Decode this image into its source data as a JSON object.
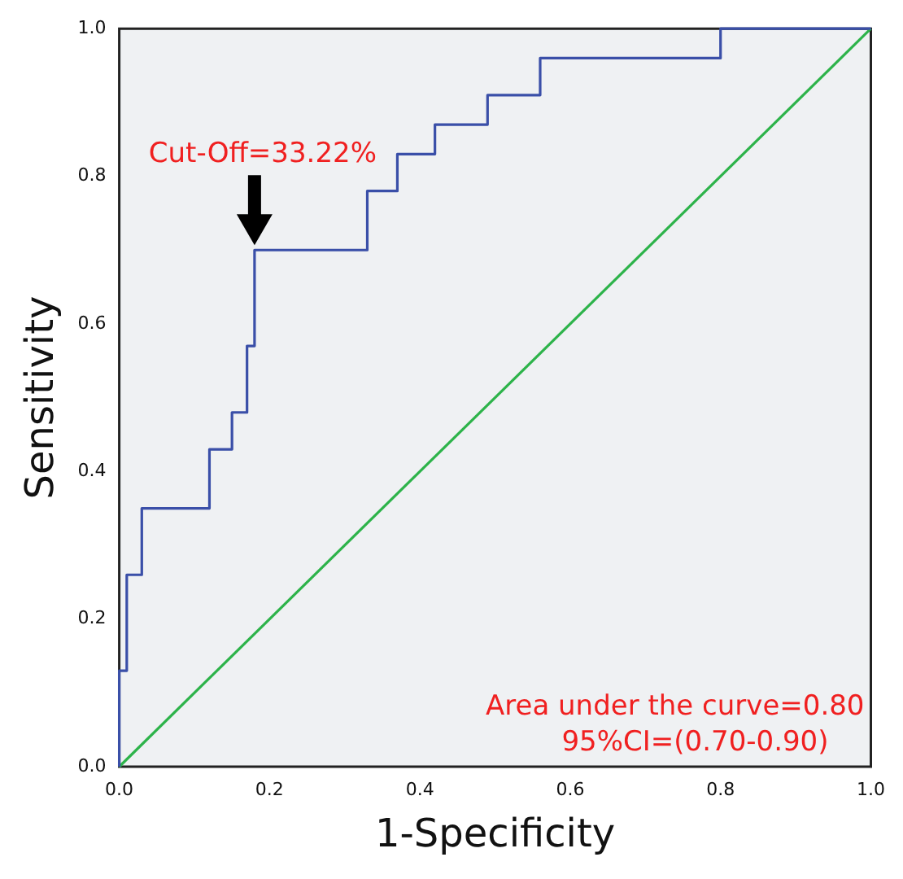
{
  "chart_data": {
    "type": "step",
    "xlabel": "1-Specificity",
    "ylabel": "Sensitivity",
    "xlim": [
      0,
      1
    ],
    "ylim": [
      0,
      1
    ],
    "xticks": [
      {
        "value": 0,
        "label": "0.0"
      },
      {
        "value": 0.2,
        "label": "0.2"
      },
      {
        "value": 0.4,
        "label": "0.4"
      },
      {
        "value": 0.6,
        "label": "0.6"
      },
      {
        "value": 0.8,
        "label": "0.8"
      },
      {
        "value": 1,
        "label": "1.0"
      }
    ],
    "yticks": [
      {
        "value": 0,
        "label": "0.0"
      },
      {
        "value": 0.2,
        "label": "0.2"
      },
      {
        "value": 0.4,
        "label": "0.4"
      },
      {
        "value": 0.6,
        "label": "0.6"
      },
      {
        "value": 0.8,
        "label": "0.8"
      },
      {
        "value": 1,
        "label": "1.0"
      }
    ],
    "series": [
      {
        "color": "#3a4fa8",
        "x": [
          0,
          0,
          0.01,
          0.03,
          0.12,
          0.15,
          0.17,
          0.18,
          0.33,
          0.37,
          0.42,
          0.49,
          0.56,
          0.8,
          1
        ],
        "values": [
          0,
          0.13,
          0.26,
          0.35,
          0.43,
          0.48,
          0.57,
          0.7,
          0.78,
          0.83,
          0.87,
          0.91,
          0.96,
          1,
          1
        ]
      },
      {
        "type": "line",
        "color": "#2db34a",
        "x": [
          0,
          1
        ],
        "values": [
          0,
          1
        ]
      }
    ],
    "annotations": [
      {
        "text": "Cut-Off=33.22%",
        "x": 0.18,
        "y": 0.7
      },
      "Area under the curve=0.80",
      "95%CI=(0.70-0.90)"
    ],
    "grid": false,
    "legend": false,
    "marker": "none",
    "line_style": "solid"
  }
}
